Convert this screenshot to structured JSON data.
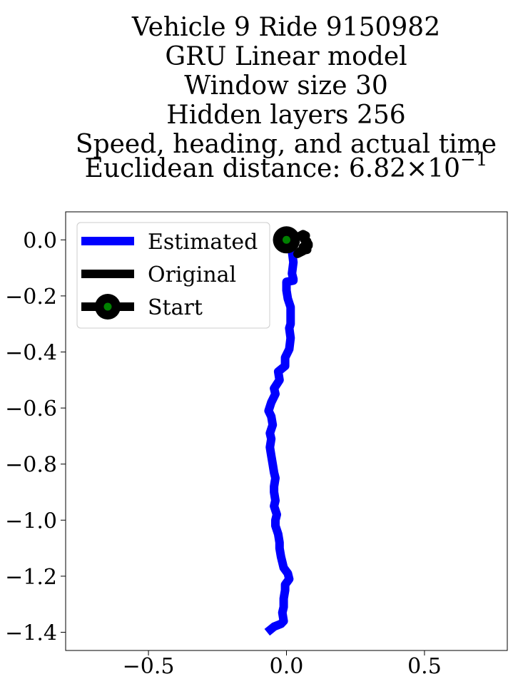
{
  "chart_data": {
    "type": "line",
    "title_lines": [
      "Vehicle 9 Ride 9150982",
      "GRU Linear model",
      "Window size 30",
      "Hidden layers 256",
      "Speed, heading, and actual time"
    ],
    "title_last_prefix": "Euclidean distance: 6.82",
    "title_last_times": "×",
    "title_last_base": "10",
    "title_last_exp": "−1",
    "xlabel": "",
    "ylabel": "",
    "xlim": [
      -0.8,
      0.8
    ],
    "ylim": [
      -1.465,
      0.1
    ],
    "xticks": [
      {
        "value": -0.5,
        "label": "−0.5"
      },
      {
        "value": 0.0,
        "label": "0.0"
      },
      {
        "value": 0.5,
        "label": "0.5"
      }
    ],
    "yticks": [
      {
        "value": 0.0,
        "label": "0.0"
      },
      {
        "value": -0.2,
        "label": "−0.2"
      },
      {
        "value": -0.4,
        "label": "−0.4"
      },
      {
        "value": -0.6,
        "label": "−0.6"
      },
      {
        "value": -0.8,
        "label": "−0.8"
      },
      {
        "value": -1.0,
        "label": "−1.0"
      },
      {
        "value": -1.2,
        "label": "−1.2"
      },
      {
        "value": -1.4,
        "label": "−1.4"
      }
    ],
    "grid": false,
    "legend": "upper-left",
    "series": [
      {
        "name": "Estimated",
        "color": "#0000ff",
        "x": [
          0.0,
          0.02,
          0.025,
          0.02,
          0.025,
          0.025,
          0.0,
          0.0,
          0.005,
          0.015,
          0.015,
          0.015,
          0.01,
          0.015,
          0.01,
          -0.005,
          -0.005,
          -0.03,
          -0.025,
          -0.045,
          -0.04,
          -0.055,
          -0.065,
          -0.055,
          -0.05,
          -0.06,
          -0.055,
          -0.06,
          -0.055,
          -0.05,
          -0.045,
          -0.04,
          -0.045,
          -0.045,
          -0.04,
          -0.045,
          -0.035,
          -0.04,
          -0.04,
          -0.03,
          -0.025,
          -0.025,
          -0.02,
          -0.015,
          -0.01,
          0.005,
          0.01,
          -0.005,
          -0.005,
          -0.01,
          -0.01,
          -0.015,
          -0.01,
          -0.02,
          -0.045,
          -0.07
        ],
        "y": [
          0.0,
          -0.04,
          -0.08,
          -0.12,
          -0.14,
          -0.145,
          -0.15,
          -0.18,
          -0.21,
          -0.24,
          -0.27,
          -0.3,
          -0.315,
          -0.35,
          -0.39,
          -0.42,
          -0.45,
          -0.47,
          -0.5,
          -0.53,
          -0.55,
          -0.58,
          -0.61,
          -0.63,
          -0.66,
          -0.69,
          -0.71,
          -0.74,
          -0.77,
          -0.8,
          -0.83,
          -0.85,
          -0.88,
          -0.9,
          -0.93,
          -0.95,
          -0.98,
          -1.0,
          -1.02,
          -1.05,
          -1.08,
          -1.1,
          -1.13,
          -1.15,
          -1.17,
          -1.19,
          -1.21,
          -1.23,
          -1.25,
          -1.28,
          -1.31,
          -1.33,
          -1.36,
          -1.37,
          -1.38,
          -1.4
        ]
      },
      {
        "name": "Original",
        "color": "#000000",
        "x": [
          0.0,
          0.02,
          0.04,
          0.06,
          0.07,
          0.065,
          0.075,
          0.07,
          0.08,
          0.07,
          0.06,
          0.075,
          0.05,
          0.04,
          0.05,
          0.06,
          0.075,
          0.08,
          0.07
        ],
        "y": [
          0.0,
          0.005,
          0.01,
          0.02,
          0.015,
          0.0,
          -0.005,
          -0.02,
          -0.02,
          -0.03,
          -0.025,
          -0.035,
          -0.04,
          -0.05,
          -0.045,
          -0.04,
          -0.03,
          -0.015,
          0.0
        ]
      }
    ],
    "start_point": {
      "name": "Start",
      "x": 0.0,
      "y": 0.0,
      "color": "#000000",
      "inner_color": "#008000"
    }
  }
}
